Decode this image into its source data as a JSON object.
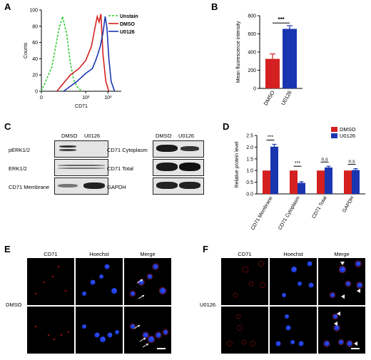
{
  "panels": {
    "A": "A",
    "B": "B",
    "C": "C",
    "D": "D",
    "E": "E",
    "F": "F"
  },
  "colors": {
    "dmso": "#d42020",
    "u0126": "#1a35b0",
    "unstain": "#33cc33"
  },
  "chart_data": [
    {
      "panel": "A",
      "type": "line",
      "xlabel": "CD71",
      "ylabel": "Counts",
      "x_scale": "log",
      "x_ticks": [
        "0",
        "10²",
        "10³"
      ],
      "y_ticks": [
        "0",
        "20",
        "40",
        "60",
        "80",
        "100"
      ],
      "ylim": [
        0,
        100
      ],
      "legend": [
        "Unstain",
        "DMSO",
        "U0126"
      ],
      "series": [
        {
          "name": "Unstain",
          "x": [
            1,
            3,
            6,
            9,
            14,
            20,
            30,
            45,
            70
          ],
          "y": [
            0,
            30,
            75,
            92,
            70,
            35,
            12,
            4,
            0
          ]
        },
        {
          "name": "DMSO",
          "x": [
            5,
            20,
            50,
            100,
            180,
            260,
            330,
            400,
            480,
            600,
            800,
            1100
          ],
          "y": [
            0,
            20,
            28,
            38,
            55,
            78,
            92,
            85,
            95,
            45,
            12,
            0
          ]
        },
        {
          "name": "U0126",
          "x": [
            10,
            40,
            100,
            200,
            300,
            450,
            600,
            750,
            900,
            1100,
            1400,
            2000
          ],
          "y": [
            0,
            12,
            22,
            28,
            40,
            55,
            72,
            92,
            78,
            40,
            12,
            0
          ]
        }
      ]
    },
    {
      "panel": "B",
      "type": "bar",
      "ylabel": "Mean fluorescence intensity",
      "y_ticks": [
        "0",
        "200",
        "400",
        "600",
        "800"
      ],
      "ylim": [
        0,
        800
      ],
      "categories": [
        "DMSO",
        "U0126"
      ],
      "values": [
        325,
        655
      ],
      "errors": [
        55,
        35
      ],
      "significance": "***"
    },
    {
      "panel": "D",
      "type": "bar",
      "ylabel": "Relative protein level",
      "y_ticks": [
        "0.0",
        "0.5",
        "1.0",
        "1.5",
        "2.0",
        "2.5"
      ],
      "ylim": [
        0,
        2.5
      ],
      "categories": [
        "CD71 Membrane",
        "CD71 Cytoplasm",
        "CD71 Total",
        "GAPDH"
      ],
      "series": [
        {
          "name": "DMSO",
          "values": [
            1.0,
            1.0,
            1.0,
            1.0
          ]
        },
        {
          "name": "U0126",
          "values": [
            2.02,
            0.47,
            1.13,
            1.02
          ]
        }
      ],
      "errors": [
        [
          0,
          0.1
        ],
        [
          0,
          0.05
        ],
        [
          0,
          0.05
        ],
        [
          0,
          0.06
        ]
      ],
      "significance": [
        "***",
        "***",
        "n.s",
        "n.s"
      ],
      "legend": [
        "DMSO",
        "U0126"
      ]
    }
  ],
  "blots_left": {
    "columns": [
      "DMSO",
      "U0126"
    ],
    "rows": [
      "pERK1/2",
      "ERK1/2",
      "CD71 Membrane"
    ]
  },
  "blots_right": {
    "columns": [
      "DMSO",
      "U0126"
    ],
    "rows": [
      "CD71 Cytoplasm",
      "CD71 Total",
      "GAPDH"
    ]
  },
  "micro_E": {
    "columns": [
      "CD71",
      "Hoechst",
      "Merge"
    ],
    "row_label": "DMSO"
  },
  "micro_F": {
    "columns": [
      "CD71",
      "Hoechst",
      "Merge"
    ],
    "row_label": "U0126"
  }
}
